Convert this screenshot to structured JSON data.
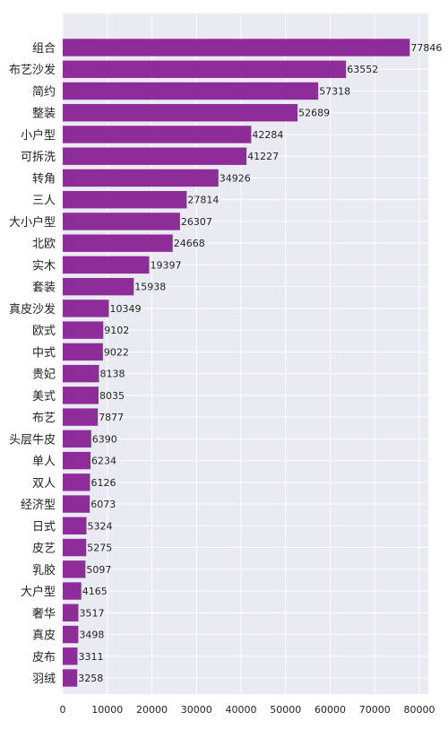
{
  "chart_data": {
    "type": "bar",
    "orientation": "horizontal",
    "title": "",
    "xlabel": "",
    "ylabel": "",
    "xlim": [
      0,
      82000
    ],
    "grid": true,
    "legend": "none",
    "colors": {
      "background": "#eaeaf2",
      "bar": "#8e2d9a",
      "grid": "#ffffff",
      "label": "#222222"
    },
    "x_ticks": [
      0,
      10000,
      20000,
      30000,
      40000,
      50000,
      60000,
      70000,
      80000
    ],
    "categories": [
      "组合",
      "布艺沙发",
      "简约",
      "整装",
      "小户型",
      "可拆洗",
      "转角",
      "三人",
      "大小户型",
      "北欧",
      "实木",
      "套装",
      "真皮沙发",
      "欧式",
      "中式",
      "贵妃",
      "美式",
      "布艺",
      "头层牛皮",
      "单人",
      "双人",
      "经济型",
      "日式",
      "皮艺",
      "乳胶",
      "大户型",
      "奢华",
      "真皮",
      "皮布",
      "羽绒"
    ],
    "values": [
      77846,
      63552,
      57318,
      52689,
      42284,
      41227,
      34926,
      27814,
      26307,
      24668,
      19397,
      15938,
      10349,
      9102,
      9022,
      8138,
      8035,
      7877,
      6390,
      6234,
      6126,
      6073,
      5324,
      5275,
      5097,
      4165,
      3517,
      3498,
      3311,
      3258
    ]
  }
}
